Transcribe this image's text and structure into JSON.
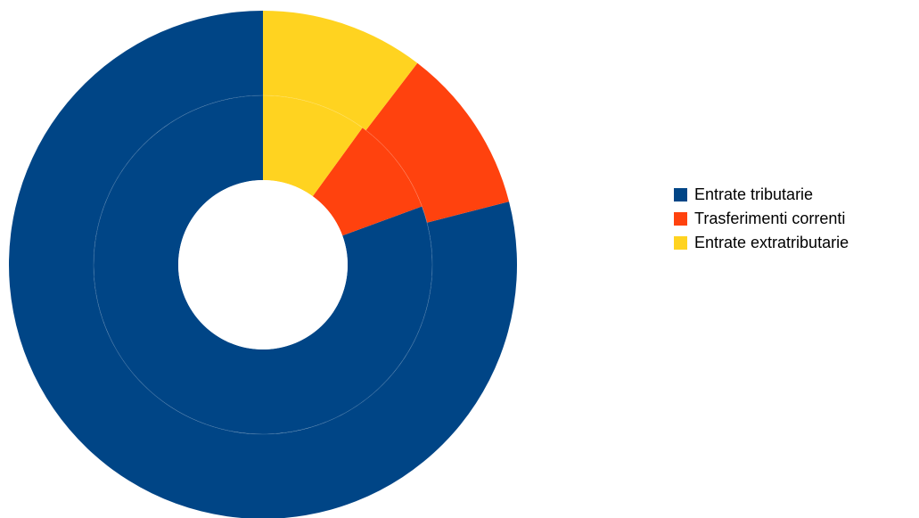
{
  "chart_data": {
    "type": "pie",
    "variant": "nested-donut",
    "title": "",
    "legend_position": "right",
    "categories": [
      "Entrate tributarie",
      "Trasferimenti correnti",
      "Entrate extratributarie"
    ],
    "colors": [
      "#004586",
      "#ff420e",
      "#ffd320"
    ],
    "series": [
      {
        "ring": "inner",
        "values": [
          80.6,
          9.4,
          10.0
        ]
      },
      {
        "ring": "outer",
        "values": [
          79.0,
          10.6,
          10.4
        ]
      }
    ]
  }
}
